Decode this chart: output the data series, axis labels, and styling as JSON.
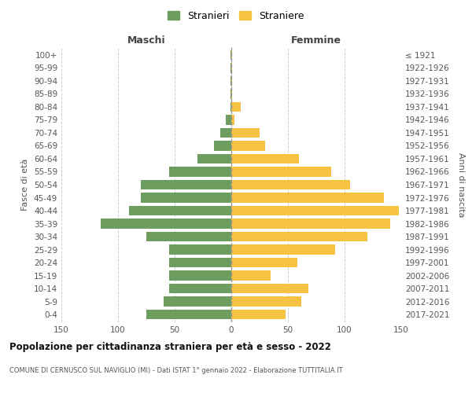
{
  "age_groups": [
    "0-4",
    "5-9",
    "10-14",
    "15-19",
    "20-24",
    "25-29",
    "30-34",
    "35-39",
    "40-44",
    "45-49",
    "50-54",
    "55-59",
    "60-64",
    "65-69",
    "70-74",
    "75-79",
    "80-84",
    "85-89",
    "90-94",
    "95-99",
    "100+"
  ],
  "birth_years": [
    "2017-2021",
    "2012-2016",
    "2007-2011",
    "2002-2006",
    "1997-2001",
    "1992-1996",
    "1987-1991",
    "1982-1986",
    "1977-1981",
    "1972-1976",
    "1967-1971",
    "1962-1966",
    "1957-1961",
    "1952-1956",
    "1947-1951",
    "1942-1946",
    "1937-1941",
    "1932-1936",
    "1927-1931",
    "1922-1926",
    "≤ 1921"
  ],
  "males": [
    75,
    60,
    55,
    55,
    55,
    55,
    75,
    115,
    90,
    80,
    80,
    55,
    30,
    15,
    10,
    5,
    1,
    1,
    1,
    1,
    1
  ],
  "females": [
    48,
    62,
    68,
    35,
    58,
    92,
    120,
    140,
    148,
    135,
    105,
    88,
    60,
    30,
    25,
    3,
    8,
    1,
    1,
    1,
    1
  ],
  "male_color": "#6e9e5f",
  "female_color": "#f5c242",
  "title": "Popolazione per cittadinanza straniera per età e sesso - 2022",
  "subtitle": "COMUNE DI CERNUSCO SUL NAVIGLIO (MI) - Dati ISTAT 1° gennaio 2022 - Elaborazione TUTTITALIA.IT",
  "xlabel_left": "Maschi",
  "xlabel_right": "Femmine",
  "ylabel_left": "Fasce di età",
  "ylabel_right": "Anni di nascita",
  "legend_male": "Stranieri",
  "legend_female": "Straniere",
  "xlim": 150,
  "background_color": "#ffffff",
  "grid_color": "#cccccc",
  "dashed_line_color": "#999999"
}
